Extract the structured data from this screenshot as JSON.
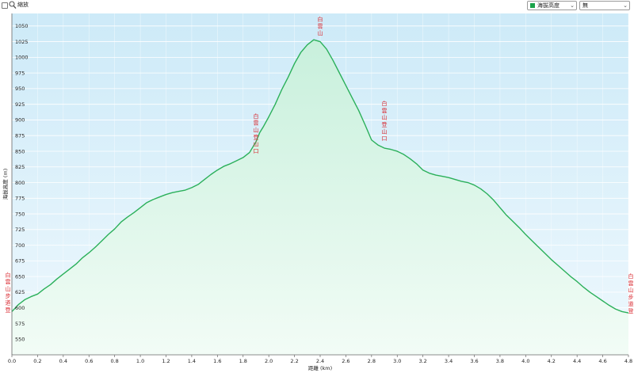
{
  "toolbar": {
    "zoom_label": "縮放",
    "series_select": "海拔高度",
    "series_color": "#1aa34a",
    "overlay_select": "無"
  },
  "chart_data": {
    "type": "area",
    "xlabel": "距離 (km)",
    "ylabel": "海拔高度 (m)",
    "xlim": [
      0.0,
      4.8
    ],
    "ylim": [
      525,
      1070
    ],
    "xticks": [
      0.0,
      0.2,
      0.4,
      0.6,
      0.8,
      1.0,
      1.2,
      1.4,
      1.6,
      1.8,
      2.0,
      2.2,
      2.4,
      2.6,
      2.8,
      3.0,
      3.2,
      3.4,
      3.6,
      3.8,
      4.0,
      4.2,
      4.4,
      4.6,
      4.8
    ],
    "yticks": [
      550,
      575,
      600,
      625,
      650,
      675,
      700,
      725,
      750,
      775,
      800,
      825,
      850,
      875,
      900,
      925,
      950,
      975,
      1000,
      1025,
      1050
    ],
    "line_color": "#2bb05a",
    "fill_top": "#c8f0dc",
    "fill_bottom": "#f2fcf6",
    "bg_top": "#cdeaf8",
    "bg_bottom": "#eef8fd",
    "grid": true,
    "series": [
      {
        "x": [
          0.0,
          0.05,
          0.1,
          0.15,
          0.2,
          0.25,
          0.3,
          0.35,
          0.4,
          0.45,
          0.5,
          0.55,
          0.6,
          0.65,
          0.7,
          0.75,
          0.8,
          0.85,
          0.9,
          0.95,
          1.0,
          1.05,
          1.1,
          1.15,
          1.2,
          1.25,
          1.3,
          1.35,
          1.4,
          1.45,
          1.5,
          1.55,
          1.6,
          1.65,
          1.7,
          1.75,
          1.8,
          1.85,
          1.9,
          1.93,
          1.96,
          2.0,
          2.05,
          2.1,
          2.15,
          2.2,
          2.25,
          2.3,
          2.35,
          2.4,
          2.45,
          2.5,
          2.55,
          2.6,
          2.65,
          2.7,
          2.75,
          2.8,
          2.85,
          2.9,
          2.95,
          3.0,
          3.05,
          3.1,
          3.15,
          3.2,
          3.25,
          3.3,
          3.35,
          3.4,
          3.45,
          3.5,
          3.55,
          3.6,
          3.65,
          3.7,
          3.75,
          3.8,
          3.85,
          3.9,
          3.95,
          4.0,
          4.05,
          4.1,
          4.15,
          4.2,
          4.25,
          4.3,
          4.35,
          4.4,
          4.45,
          4.5,
          4.55,
          4.6,
          4.65,
          4.7,
          4.75,
          4.8
        ],
        "values": [
          594,
          605,
          613,
          618,
          622,
          630,
          637,
          646,
          654,
          662,
          670,
          680,
          688,
          697,
          707,
          717,
          726,
          737,
          745,
          752,
          760,
          768,
          773,
          777,
          781,
          784,
          786,
          788,
          792,
          797,
          805,
          813,
          820,
          826,
          830,
          835,
          840,
          848,
          865,
          880,
          890,
          905,
          925,
          948,
          968,
          990,
          1008,
          1020,
          1028,
          1025,
          1013,
          995,
          975,
          955,
          935,
          915,
          892,
          868,
          860,
          855,
          853,
          850,
          845,
          838,
          830,
          820,
          815,
          812,
          810,
          808,
          805,
          802,
          800,
          796,
          790,
          782,
          772,
          760,
          748,
          738,
          728,
          717,
          707,
          697,
          687,
          677,
          668,
          659,
          650,
          642,
          633,
          625,
          618,
          611,
          604,
          598,
          594,
          592
        ]
      }
    ],
    "annotations": [
      {
        "x": 0.0,
        "y": 594,
        "text": "白雲山步道登",
        "anchor": "left"
      },
      {
        "x": 1.9,
        "y": 840,
        "text": "白雲山登山口",
        "anchor": "above"
      },
      {
        "x": 2.4,
        "y": 1028,
        "text": "白雲山",
        "anchor": "above"
      },
      {
        "x": 2.9,
        "y": 860,
        "text": "白雲山登山口",
        "anchor": "above"
      },
      {
        "x": 4.8,
        "y": 592,
        "text": "白雲山步道登",
        "anchor": "right"
      }
    ]
  }
}
